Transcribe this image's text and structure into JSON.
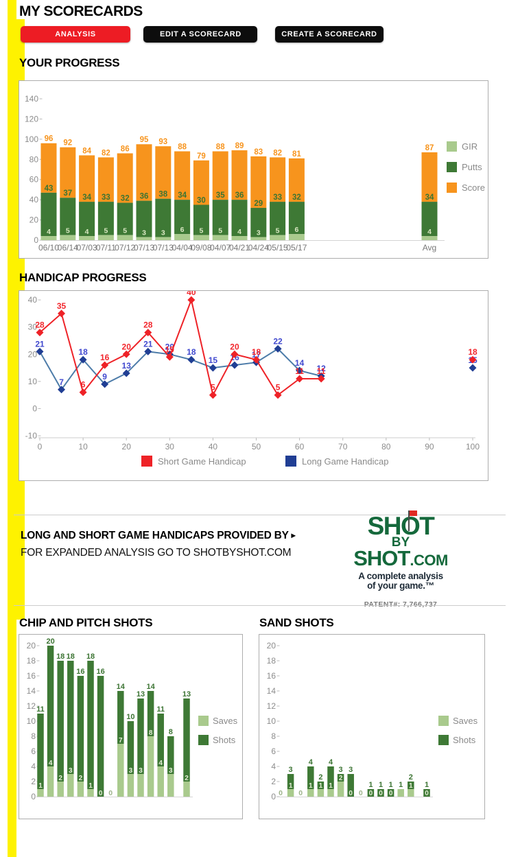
{
  "page": {
    "title": "MY SCORECARDS"
  },
  "toolbar": {
    "buttons": [
      {
        "label": "ANALYSIS",
        "color": "#ed1c24"
      },
      {
        "label": "EDIT A SCORECARD",
        "color": "#0d0d0d"
      },
      {
        "label": "CREATE A SCORECARD",
        "color": "#0d0d0d"
      }
    ]
  },
  "sections": {
    "your_progress": "YOUR PROGRESS",
    "handicap_progress": "HANDICAP PROGRESS",
    "chip_and_pitch": "CHIP AND PITCH SHOTS",
    "sand": "SAND SHOTS"
  },
  "provider": {
    "line1": "LONG AND SHORT GAME HANDICAPS PROVIDED BY",
    "arrow": "▸",
    "line2": "FOR EXPANDED ANALYSIS GO TO SHOTBYSHOT.COM",
    "logo": {
      "word1": "SHOT",
      "word2": "BY",
      "word3": "SHOT",
      "word3b": ".COM",
      "tagline1": "A complete analysis",
      "tagline2": "of your game.™",
      "patent": "PATENT#: 7,766,737"
    }
  },
  "colors": {
    "yellow_stripe": "#fef200",
    "orange": "#f7941d",
    "dark_green": "#3e7935",
    "light_green": "#a9ca8d",
    "red": "#ee2227",
    "navy": "#203e94",
    "steel_line": "#4d7ca9",
    "logo_green": "#15693c",
    "axis_gray": "#8c8c8c"
  },
  "chart_data": [
    {
      "id": "progress",
      "type": "bar",
      "stacked": true,
      "title": "YOUR PROGRESS",
      "categories": [
        "06/10",
        "06/14",
        "07/03",
        "07/11",
        "07/12",
        "07/13",
        "07/13",
        "04/04",
        "09/08",
        "04/07",
        "04/21",
        "04/24",
        "05/15",
        "05/17"
      ],
      "avg_label": "Avg",
      "ylim": [
        0,
        140
      ],
      "ytick_step": 20,
      "grid": false,
      "legend_position": "right",
      "series": [
        {
          "name": "GIR",
          "color": "#a9ca8d",
          "values": [
            4,
            5,
            4,
            5,
            5,
            3,
            3,
            6,
            5,
            5,
            4,
            3,
            5,
            6
          ],
          "avg": 4
        },
        {
          "name": "Putts",
          "color": "#3e7935",
          "values": [
            43,
            37,
            34,
            33,
            32,
            36,
            38,
            34,
            30,
            35,
            36,
            29,
            33,
            32
          ],
          "avg": 34
        },
        {
          "name": "Score",
          "color": "#f7941d",
          "values": [
            96,
            92,
            84,
            82,
            86,
            95,
            93,
            88,
            79,
            88,
            89,
            83,
            82,
            81
          ],
          "avg": 87
        }
      ],
      "note": "Score values are total bar heights; Putts stack above GIR"
    },
    {
      "id": "handicap",
      "type": "line",
      "title": "HANDICAP PROGRESS",
      "x": [
        0,
        5,
        10,
        15,
        20,
        25,
        30,
        35,
        40,
        45,
        50,
        55,
        60,
        65
      ],
      "avg_x": 100,
      "xlim": [
        0,
        100
      ],
      "ylim": [
        -10,
        40
      ],
      "xtick_step": 10,
      "ytick_step": 10,
      "grid": false,
      "legend_position": "bottom",
      "series": [
        {
          "name": "Short Game Handicap",
          "color": "#ee2227",
          "line_color": "#ee2227",
          "label_color": "#f2262c",
          "values": [
            28,
            35,
            6,
            16,
            20,
            28,
            19,
            40,
            5,
            20,
            18,
            5,
            11,
            11
          ],
          "avg": 18
        },
        {
          "name": "Long Game Handicap",
          "color": "#203e94",
          "line_color": "#4d7ca9",
          "label_color": "#4149cf",
          "values": [
            21,
            7,
            18,
            9,
            13,
            21,
            20,
            18,
            15,
            16,
            17,
            22,
            14,
            12
          ],
          "avg": 15
        }
      ]
    },
    {
      "id": "chip",
      "type": "bar",
      "stacked": true,
      "title": "CHIP AND PITCH SHOTS",
      "ylim": [
        0,
        20
      ],
      "ytick_step": 2,
      "grid": false,
      "legend_position": "right",
      "series": [
        {
          "name": "Saves",
          "color": "#a9ca8d",
          "values": [
            1,
            4,
            2,
            3,
            2,
            1,
            0,
            0,
            7,
            3,
            3,
            8,
            4,
            3
          ],
          "avg": 2
        },
        {
          "name": "Shots",
          "color": "#3e7935",
          "values": [
            11,
            20,
            18,
            18,
            16,
            18,
            16,
            0,
            14,
            10,
            13,
            14,
            11,
            8
          ],
          "avg": 13
        }
      ],
      "note": "Shots values are total bar heights; Saves is lower segment"
    },
    {
      "id": "sand",
      "type": "bar",
      "stacked": true,
      "title": "SAND SHOTS",
      "ylim": [
        0,
        20
      ],
      "ytick_step": 2,
      "grid": false,
      "legend_position": "right",
      "series": [
        {
          "name": "Saves",
          "color": "#a9ca8d",
          "values": [
            0,
            1,
            0,
            1,
            1,
            1,
            2,
            0,
            0,
            0,
            0,
            0,
            1,
            1
          ],
          "avg": 0
        },
        {
          "name": "Shots",
          "color": "#3e7935",
          "values": [
            0,
            3,
            0,
            4,
            2,
            4,
            3,
            3,
            0,
            1,
            1,
            1,
            1,
            2
          ],
          "avg": 1
        }
      ],
      "note": "Shots values are total bar heights; Saves is lower segment"
    }
  ]
}
